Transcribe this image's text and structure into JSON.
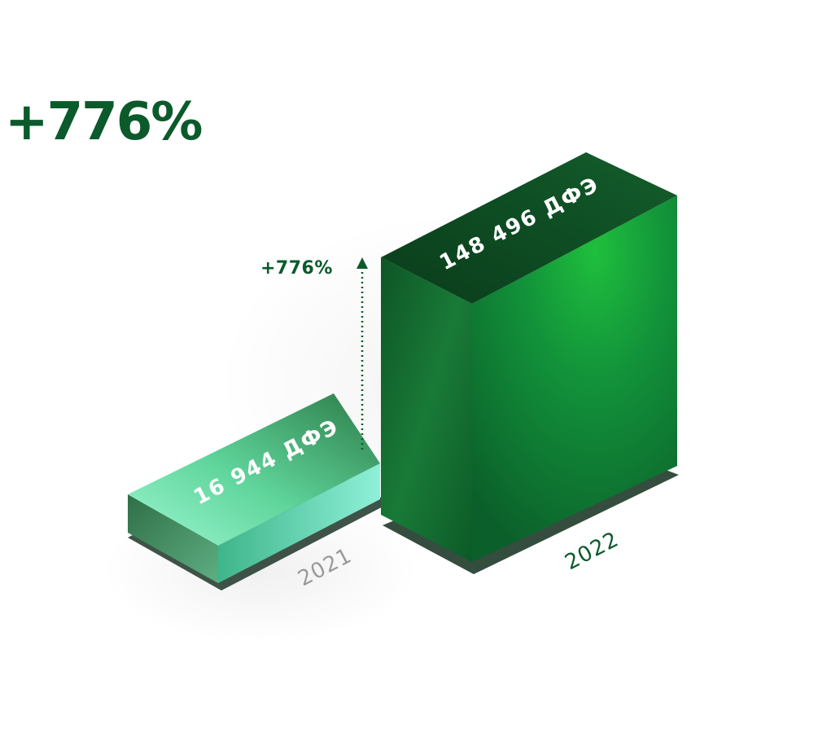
{
  "headline": "+776%",
  "chart_data": {
    "type": "bar",
    "categories": [
      "2021",
      "2022"
    ],
    "values": [
      16944,
      148496
    ],
    "data_labels": [
      "16 944 ДФЭ",
      "148 496 ДФЭ"
    ],
    "growth_label": "+776%",
    "unit": "ДФЭ"
  },
  "colors": {
    "brand_green": "#0b5a2b",
    "bar_2021_top_light": "#8ff2c8",
    "bar_2021_top_dark": "#2f7f4b",
    "bar_2022_top": "#0d4a22",
    "bar_2022_front": "#0d6a2c",
    "bar_2022_side": "#118a35",
    "year_2021_text": "#9a9a9a",
    "year_2022_text": "#0b5a2b"
  }
}
